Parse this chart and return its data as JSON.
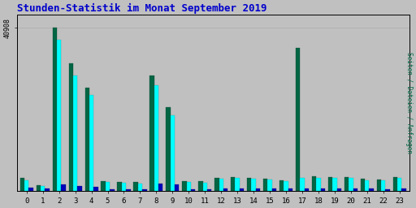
{
  "title": "Stunden-Statistik im Monat September 2019",
  "title_color": "#0000cc",
  "title_fontsize": 9,
  "ylabel_right": "Seiten / Dateien / Anfragen",
  "ytick_label": "40908",
  "background_color": "#c0c0c0",
  "plot_bg_color": "#c0c0c0",
  "hours": [
    0,
    1,
    2,
    3,
    4,
    5,
    6,
    7,
    8,
    9,
    10,
    11,
    12,
    13,
    14,
    15,
    16,
    17,
    18,
    19,
    20,
    21,
    22,
    23
  ],
  "seiten": [
    3200,
    1400,
    40908,
    32000,
    26000,
    2500,
    2300,
    2200,
    29000,
    21000,
    2500,
    2400,
    3400,
    3500,
    3400,
    3100,
    2700,
    36000,
    3700,
    3600,
    3600,
    3000,
    2900,
    3600
  ],
  "dateien": [
    2700,
    1200,
    38000,
    29000,
    24000,
    2200,
    2000,
    1900,
    26500,
    19000,
    2200,
    2100,
    3100,
    3200,
    3100,
    2800,
    2400,
    3400,
    3400,
    3300,
    3200,
    2700,
    2600,
    3300
  ],
  "anfragen": [
    850,
    600,
    1700,
    1350,
    1050,
    450,
    380,
    370,
    1900,
    1700,
    450,
    460,
    560,
    570,
    550,
    550,
    550,
    550,
    560,
    640,
    560,
    560,
    540,
    640
  ],
  "color_seiten": "#006644",
  "color_dateien": "#00ffff",
  "color_anfragen": "#0000bb",
  "grid_color": "#b0b0b0",
  "border_color": "#000000",
  "ylabel_colors": [
    "#006644",
    "#00cccc",
    "#0000bb"
  ]
}
